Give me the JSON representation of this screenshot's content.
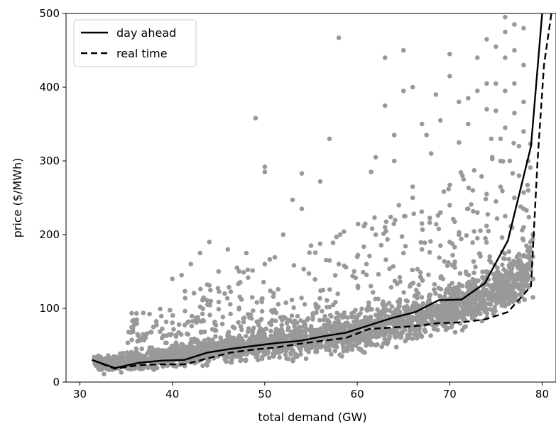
{
  "chart_data": {
    "type": "scatter",
    "title": "",
    "xlabel": "total demand (GW)",
    "ylabel": "price ($/MWh)",
    "xlim": [
      28.5,
      81.5
    ],
    "ylim": [
      0,
      500
    ],
    "xticks": [
      30,
      40,
      50,
      60,
      70,
      80
    ],
    "yticks": [
      0,
      100,
      200,
      300,
      400,
      500
    ],
    "grid": false,
    "legend_position": "top-left",
    "scatter": {
      "color": "#999999",
      "trend": [
        [
          31,
          28
        ],
        [
          33,
          24
        ],
        [
          35,
          27
        ],
        [
          37,
          31
        ],
        [
          39,
          34
        ],
        [
          41,
          38
        ],
        [
          43,
          42
        ],
        [
          45,
          45
        ],
        [
          47,
          48
        ],
        [
          49,
          51
        ],
        [
          51,
          54
        ],
        [
          53,
          57
        ],
        [
          55,
          60
        ],
        [
          57,
          63
        ],
        [
          59,
          67
        ],
        [
          61,
          72
        ],
        [
          63,
          78
        ],
        [
          65,
          84
        ],
        [
          67,
          90
        ],
        [
          69,
          97
        ],
        [
          71,
          104
        ],
        [
          73,
          112
        ],
        [
          75,
          122
        ],
        [
          77,
          135
        ],
        [
          78.5,
          150
        ]
      ],
      "outliers": [
        [
          49,
          358
        ],
        [
          50,
          292
        ],
        [
          50,
          285
        ],
        [
          54,
          283
        ],
        [
          56,
          272
        ],
        [
          57,
          330
        ],
        [
          58,
          467
        ],
        [
          61.5,
          285
        ],
        [
          62,
          305
        ],
        [
          63,
          440
        ],
        [
          63,
          375
        ],
        [
          64,
          335
        ],
        [
          64,
          300
        ],
        [
          65,
          450
        ],
        [
          65,
          395
        ],
        [
          66,
          400
        ],
        [
          67,
          350
        ],
        [
          67.5,
          335
        ],
        [
          68,
          310
        ],
        [
          68.5,
          390
        ],
        [
          69,
          355
        ],
        [
          70,
          445
        ],
        [
          70,
          415
        ],
        [
          71,
          380
        ],
        [
          71,
          325
        ],
        [
          71.5,
          275
        ],
        [
          72,
          385
        ],
        [
          72,
          350
        ],
        [
          73,
          440
        ],
        [
          73,
          395
        ],
        [
          74,
          465
        ],
        [
          74,
          405
        ],
        [
          74,
          370
        ],
        [
          74.5,
          330
        ],
        [
          75,
          455
        ],
        [
          75,
          405
        ],
        [
          75,
          368
        ],
        [
          75.5,
          330
        ],
        [
          75.5,
          300
        ],
        [
          76,
          475
        ],
        [
          76,
          440
        ],
        [
          76,
          395
        ],
        [
          76,
          345
        ],
        [
          76.5,
          300
        ],
        [
          77,
          485
        ],
        [
          77,
          450
        ],
        [
          77,
          405
        ],
        [
          77,
          365
        ],
        [
          77.5,
          320
        ],
        [
          77.5,
          280
        ],
        [
          78,
          480
        ],
        [
          78,
          430
        ],
        [
          78,
          380
        ],
        [
          78,
          340
        ],
        [
          78.5,
          300
        ],
        [
          78.5,
          260
        ],
        [
          76,
          495
        ],
        [
          44,
          190
        ],
        [
          46,
          180
        ],
        [
          43,
          175
        ],
        [
          48,
          175
        ],
        [
          55,
          185
        ],
        [
          53,
          247
        ],
        [
          54,
          235
        ],
        [
          52,
          200
        ],
        [
          62,
          200
        ],
        [
          63,
          210
        ],
        [
          64.5,
          240
        ],
        [
          66,
          250
        ],
        [
          67,
          215
        ],
        [
          66,
          265
        ],
        [
          69,
          230
        ],
        [
          70,
          240
        ],
        [
          72,
          235
        ],
        [
          72.5,
          260
        ],
        [
          73,
          230
        ],
        [
          74,
          255
        ],
        [
          75,
          245
        ],
        [
          76,
          225
        ],
        [
          77,
          250
        ],
        [
          78,
          235
        ],
        [
          78,
          210
        ],
        [
          79,
          200
        ],
        [
          79,
          170
        ],
        [
          79,
          140
        ],
        [
          79,
          115
        ],
        [
          42,
          160
        ],
        [
          41,
          145
        ],
        [
          40,
          140
        ],
        [
          45,
          150
        ],
        [
          47,
          155
        ],
        [
          50,
          160
        ],
        [
          57,
          165
        ],
        [
          58,
          160
        ],
        [
          60,
          170
        ],
        [
          61,
          160
        ],
        [
          65,
          175
        ],
        [
          67,
          180
        ],
        [
          69,
          185
        ],
        [
          70,
          190
        ],
        [
          71,
          200
        ],
        [
          73,
          195
        ]
      ]
    },
    "series": [
      {
        "name": "day ahead",
        "style": "solid",
        "x": [
          31.3,
          33.8,
          36.3,
          38.8,
          41.3,
          43.8,
          46.3,
          48.8,
          51.3,
          53.8,
          56.3,
          58.8,
          61.3,
          63.8,
          66.3,
          68.8,
          71.3,
          73.8,
          76.3,
          78.8,
          80.0
        ],
        "y": [
          30,
          19,
          26,
          29,
          30,
          40,
          45,
          49,
          53,
          56,
          62,
          67,
          77,
          87,
          95,
          111,
          112,
          134,
          192,
          320,
          500
        ]
      },
      {
        "name": "real time",
        "style": "dashed",
        "x": [
          31.3,
          33.8,
          36.3,
          38.8,
          41.3,
          43.8,
          46.3,
          48.8,
          51.3,
          53.8,
          56.3,
          58.8,
          61.3,
          63.8,
          66.3,
          68.8,
          71.3,
          73.8,
          76.3,
          78.8,
          79.5,
          80.2,
          81.0
        ],
        "y": [
          30,
          18,
          23,
          24,
          24,
          32,
          40,
          44,
          47,
          52,
          56,
          60,
          72,
          74,
          76,
          80,
          81,
          85,
          95,
          130,
          300,
          430,
          500
        ]
      }
    ]
  }
}
